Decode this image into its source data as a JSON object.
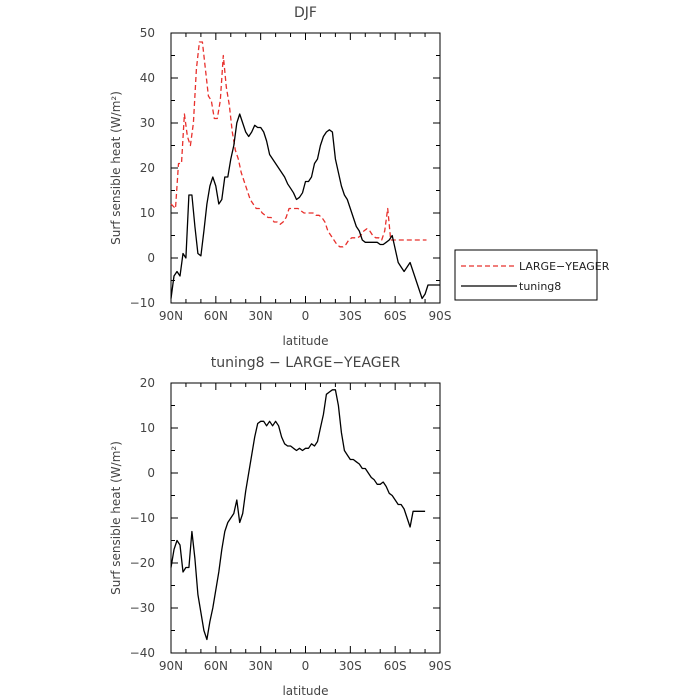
{
  "chart_data": [
    {
      "type": "line",
      "title": "DJF",
      "xlabel": "latitude",
      "ylabel": "Surf sensible heat (W/m²)",
      "xlim": [
        90,
        -90
      ],
      "ylim": [
        -10,
        50
      ],
      "x_ticks": [
        90,
        60,
        30,
        0,
        -30,
        -60,
        -90
      ],
      "x_tick_labels": [
        "90N",
        "60N",
        "30N",
        "0",
        "30S",
        "60S",
        "90S"
      ],
      "y_ticks": [
        -10,
        0,
        10,
        20,
        30,
        40,
        50
      ],
      "y_tick_labels": [
        "−10",
        "0",
        "10",
        "20",
        "30",
        "40",
        "50"
      ],
      "legend": {
        "placement": "right",
        "entries": [
          "LARGE−YEAGER",
          "tuning8"
        ]
      },
      "series": [
        {
          "name": "LARGE−YEAGER",
          "color": "#e8302c",
          "dash": "dashed",
          "x": [
            90,
            87,
            85,
            83,
            81,
            79,
            77,
            75,
            73,
            71,
            69,
            67,
            65,
            63,
            61,
            59,
            57,
            55,
            53,
            51,
            49,
            47,
            45,
            43,
            41,
            39,
            37,
            35,
            33,
            31,
            29,
            27,
            25,
            23,
            21,
            19,
            17,
            15,
            13,
            11,
            9,
            7,
            5,
            3,
            1,
            -1,
            -3,
            -5,
            -7,
            -9,
            -11,
            -13,
            -15,
            -17,
            -19,
            -21,
            -23,
            -25,
            -27,
            -29,
            -31,
            -33,
            -35,
            -37,
            -39,
            -41,
            -43,
            -45,
            -47,
            -49,
            -51,
            -53,
            -55,
            -57,
            -59,
            -61,
            -63,
            -65,
            -67,
            -69,
            -71,
            -73,
            -75,
            -77,
            -79,
            -81
          ],
          "y": [
            12,
            11,
            21,
            21,
            32,
            27,
            25,
            30,
            42,
            48,
            48,
            42,
            36,
            35,
            31,
            31,
            35,
            45,
            38,
            34,
            28,
            24,
            22,
            19,
            17,
            15,
            13,
            12,
            11,
            11,
            10,
            9.5,
            9,
            9,
            8,
            8,
            7.5,
            8,
            9,
            11,
            11,
            11,
            11,
            10.5,
            10,
            10,
            10,
            10,
            9.5,
            9.5,
            9,
            8,
            6,
            5,
            4,
            3,
            2.5,
            2.5,
            3,
            4,
            4.5,
            4.5,
            4.5,
            5,
            6,
            6.5,
            6,
            5,
            4.5,
            4.5,
            4,
            6,
            11,
            4,
            4,
            4,
            4,
            4,
            4,
            4,
            4,
            4,
            4,
            4,
            4,
            4
          ]
        },
        {
          "name": "tuning8",
          "color": "#000000",
          "dash": "solid",
          "x": [
            90,
            88,
            86,
            84,
            82,
            80,
            78,
            76,
            74,
            72,
            70,
            68,
            66,
            64,
            62,
            60,
            58,
            56,
            54,
            52,
            50,
            48,
            46,
            44,
            42,
            40,
            38,
            36,
            34,
            32,
            30,
            28,
            26,
            24,
            22,
            20,
            18,
            16,
            14,
            12,
            10,
            8,
            6,
            4,
            2,
            0,
            -2,
            -4,
            -6,
            -8,
            -10,
            -12,
            -14,
            -16,
            -18,
            -20,
            -22,
            -24,
            -26,
            -28,
            -30,
            -32,
            -34,
            -36,
            -38,
            -40,
            -42,
            -44,
            -46,
            -48,
            -50,
            -52,
            -54,
            -56,
            -58,
            -60,
            -62,
            -64,
            -66,
            -68,
            -70,
            -72,
            -74,
            -76,
            -78,
            -80,
            -82,
            -84,
            -86,
            -88,
            -90
          ],
          "y": [
            -9,
            -4,
            -3,
            -4,
            1,
            0,
            14,
            14,
            7,
            1,
            0.5,
            6,
            12,
            16,
            18,
            16,
            12,
            13,
            18,
            18,
            22,
            25,
            30,
            32,
            30,
            28,
            27,
            28,
            29.5,
            29,
            29,
            28,
            26,
            23,
            22,
            21,
            20,
            19,
            18,
            16.5,
            15.5,
            14.5,
            13,
            13.5,
            14.5,
            17,
            17,
            18,
            21,
            22,
            25,
            27,
            28,
            28.5,
            28,
            22,
            19,
            16,
            14,
            13,
            11,
            9,
            7,
            6,
            4,
            3.5,
            3.5,
            3.5,
            3.5,
            3.5,
            3,
            3,
            3.5,
            4,
            5,
            2,
            -1,
            -2,
            -3,
            -2,
            -1,
            -3,
            -5,
            -7,
            -9,
            -8,
            -6,
            -6,
            -6,
            -6,
            -6
          ]
        }
      ]
    },
    {
      "type": "line",
      "title": "tuning8 − LARGE−YEAGER",
      "xlabel": "latitude",
      "ylabel": "Surf sensible heat (W/m²)",
      "xlim": [
        90,
        -90
      ],
      "ylim": [
        -40,
        20
      ],
      "x_ticks": [
        90,
        60,
        30,
        0,
        -30,
        -60,
        -90
      ],
      "x_tick_labels": [
        "90N",
        "60N",
        "30N",
        "0",
        "30S",
        "60S",
        "90S"
      ],
      "y_ticks": [
        -40,
        -30,
        -20,
        -10,
        0,
        10,
        20
      ],
      "y_tick_labels": [
        "−40",
        "−30",
        "−20",
        "−10",
        "0",
        "10",
        "20"
      ],
      "series": [
        {
          "color": "#000000",
          "dash": "solid",
          "x": [
            90,
            88,
            86,
            84,
            82,
            80,
            78,
            76,
            74,
            72,
            70,
            68,
            66,
            64,
            62,
            60,
            58,
            56,
            54,
            52,
            50,
            48,
            46,
            44,
            42,
            40,
            38,
            36,
            34,
            32,
            30,
            28,
            26,
            24,
            22,
            20,
            18,
            16,
            14,
            12,
            10,
            8,
            6,
            4,
            2,
            0,
            -2,
            -4,
            -6,
            -8,
            -10,
            -12,
            -14,
            -16,
            -18,
            -20,
            -22,
            -24,
            -26,
            -28,
            -30,
            -32,
            -34,
            -36,
            -38,
            -40,
            -42,
            -44,
            -46,
            -48,
            -50,
            -52,
            -54,
            -56,
            -58,
            -60,
            -62,
            -64,
            -66,
            -68,
            -70,
            -72,
            -74,
            -76,
            -78,
            -80
          ],
          "y": [
            -21,
            -17,
            -15,
            -16,
            -22,
            -21,
            -21,
            -13,
            -19,
            -27,
            -31,
            -35,
            -37,
            -33,
            -30,
            -26,
            -22,
            -17,
            -13,
            -11,
            -10,
            -9,
            -6,
            -11,
            -9,
            -4,
            0,
            4,
            8,
            11,
            11.5,
            11.5,
            10.5,
            11.5,
            10.5,
            11.5,
            10.5,
            8,
            6.5,
            6,
            6,
            5.5,
            5,
            5.5,
            5,
            5.5,
            5.5,
            6.5,
            6,
            7,
            10,
            13,
            17.5,
            18,
            18.5,
            18.5,
            15,
            9,
            5,
            4,
            3,
            3,
            2.5,
            2,
            1,
            1,
            0,
            -1,
            -1.5,
            -2.5,
            -2.5,
            -2,
            -3,
            -4.5,
            -5,
            -6,
            -7,
            -7,
            -8,
            -10,
            -12,
            -8.5,
            -8.5,
            -8.5,
            -8.5,
            -8.5
          ]
        }
      ]
    }
  ]
}
